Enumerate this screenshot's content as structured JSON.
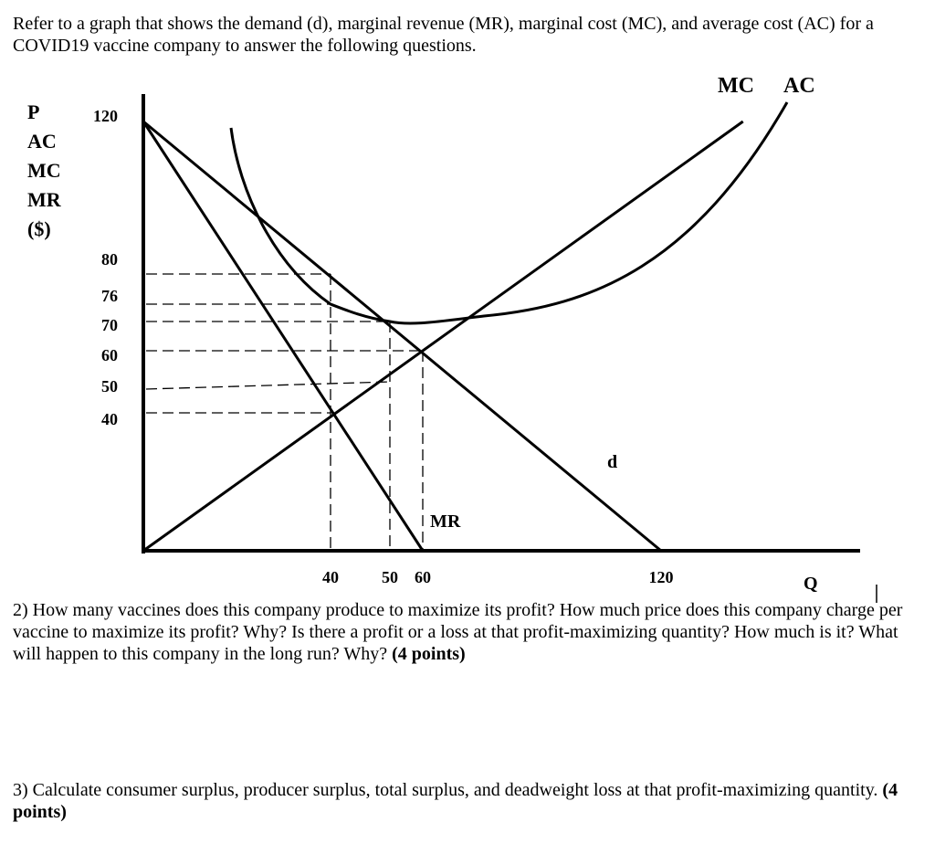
{
  "intro": "Refer to a graph that shows the demand (d), marginal revenue (MR), marginal cost (MC), and average cost (AC) for a COVID19 vaccine company to answer the following questions.",
  "question2": {
    "text": "2) How many vaccines does this company produce to maximize its profit? How much price does this company charge per vaccine to maximize its profit? Why? Is there a profit or a loss at that profit-maximizing quantity? How much is it? What will happen to this company in the long run? Why? ",
    "points": "(4 points)"
  },
  "question3": {
    "text": "3) Calculate consumer surplus, producer surplus, total surplus, and deadweight loss at that profit-maximizing quantity. ",
    "points": "(4 points)"
  },
  "chart_data": {
    "type": "line",
    "ylabel": [
      "P",
      "AC",
      "MC",
      "MR",
      "($)"
    ],
    "xlabel": "Q",
    "y_ticks": [
      120,
      80,
      76,
      70,
      60,
      50,
      40
    ],
    "x_ticks": [
      40,
      50,
      60,
      120
    ],
    "curve_labels": {
      "mc": "MC",
      "ac": "AC",
      "demand": "d",
      "mr": "MR"
    },
    "series": [
      {
        "name": "d",
        "points": [
          [
            0,
            120
          ],
          [
            120,
            0
          ]
        ]
      },
      {
        "name": "MR",
        "points": [
          [
            0,
            120
          ],
          [
            60,
            0
          ]
        ]
      },
      {
        "name": "MC",
        "points": [
          [
            0,
            0
          ],
          [
            40,
            40
          ],
          [
            60,
            60
          ]
        ]
      },
      {
        "name": "AC",
        "points": [
          [
            40,
            76
          ],
          [
            50,
            70
          ]
        ]
      }
    ],
    "guides": {
      "horizontal": [
        80,
        76,
        70,
        60,
        50,
        40
      ],
      "vertical": [
        40,
        50,
        60
      ]
    },
    "grid": false
  }
}
